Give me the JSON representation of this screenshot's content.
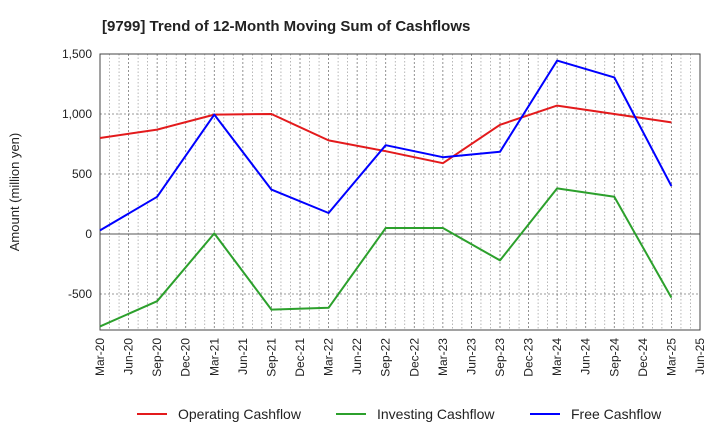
{
  "chart_data": {
    "type": "line",
    "title": "[9799]  Trend of 12-Month Moving Sum of Cashflows",
    "xlabel": "",
    "ylabel": "Amount (million yen)",
    "ylim": [
      -800,
      1500
    ],
    "yticks": [
      1500,
      1000,
      500,
      0,
      -500
    ],
    "ytick_labels": [
      "1,500",
      "1,000",
      "500",
      "0",
      "-500"
    ],
    "categories": [
      "Mar-20",
      "Jun-20",
      "Sep-20",
      "Dec-20",
      "Mar-21",
      "Jun-21",
      "Sep-21",
      "Dec-21",
      "Mar-22",
      "Jun-22",
      "Sep-22",
      "Dec-22",
      "Mar-23",
      "Jun-23",
      "Sep-23",
      "Dec-23",
      "Mar-24",
      "Jun-24",
      "Sep-24",
      "Dec-24",
      "Mar-25",
      "Jun-25"
    ],
    "grid": true,
    "legend_position": "bottom",
    "series": [
      {
        "name": "Operating Cashflow",
        "color": "#e31a1c",
        "values": [
          800,
          null,
          870,
          null,
          995,
          null,
          1000,
          null,
          780,
          null,
          690,
          null,
          590,
          null,
          910,
          null,
          1070,
          null,
          1000,
          null,
          930,
          null
        ]
      },
      {
        "name": "Investing Cashflow",
        "color": "#2ca02c",
        "values": [
          -770,
          null,
          -560,
          null,
          5,
          null,
          -630,
          null,
          -615,
          null,
          50,
          null,
          50,
          null,
          -220,
          null,
          380,
          null,
          310,
          null,
          -530,
          null
        ]
      },
      {
        "name": "Free Cashflow",
        "color": "#0000ff",
        "values": [
          30,
          null,
          310,
          null,
          995,
          null,
          370,
          null,
          175,
          null,
          740,
          null,
          640,
          null,
          685,
          null,
          1445,
          null,
          1305,
          null,
          400,
          null
        ]
      }
    ]
  }
}
